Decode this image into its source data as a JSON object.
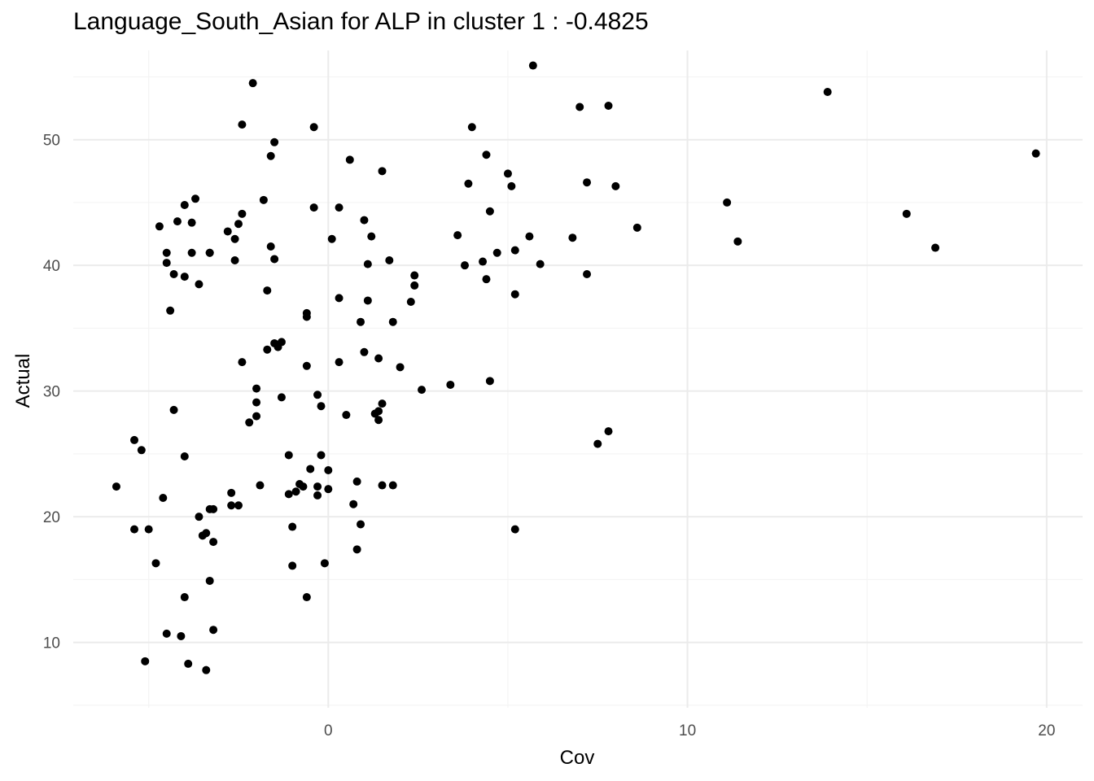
{
  "chart_data": {
    "type": "scatter",
    "title": "Language_South_Asian for ALP in cluster 1 : -0.4825",
    "xlabel": "Cov",
    "ylabel": "Actual",
    "xlim": [
      -7.1,
      21.0
    ],
    "ylim": [
      4.8,
      57.1
    ],
    "x_major_ticks": [
      0,
      10,
      20
    ],
    "x_minor_ticks": [
      -5,
      5,
      15
    ],
    "y_major_ticks": [
      10,
      20,
      30,
      40,
      50
    ],
    "y_minor_ticks": [
      5,
      15,
      25,
      35,
      45,
      55
    ],
    "grid": true,
    "point_color": "#000000",
    "points": [
      [
        -5.9,
        22.4
      ],
      [
        -5.4,
        26.1
      ],
      [
        -5.4,
        19.0
      ],
      [
        -5.2,
        25.3
      ],
      [
        -5.0,
        19.0
      ],
      [
        -5.1,
        8.5
      ],
      [
        -4.8,
        16.3
      ],
      [
        -4.7,
        43.1
      ],
      [
        -4.6,
        21.5
      ],
      [
        -4.5,
        10.7
      ],
      [
        -4.5,
        41.0
      ],
      [
        -4.5,
        40.2
      ],
      [
        -4.4,
        36.4
      ],
      [
        -4.3,
        28.5
      ],
      [
        -4.3,
        39.3
      ],
      [
        -4.2,
        43.5
      ],
      [
        -4.1,
        10.5
      ],
      [
        -4.0,
        44.8
      ],
      [
        -4.0,
        39.1
      ],
      [
        -4.0,
        24.8
      ],
      [
        -4.0,
        13.6
      ],
      [
        -3.8,
        43.4
      ],
      [
        -3.8,
        41.0
      ],
      [
        -3.7,
        45.3
      ],
      [
        -3.6,
        20.0
      ],
      [
        -3.6,
        38.5
      ],
      [
        -3.5,
        18.5
      ],
      [
        -3.4,
        18.7
      ],
      [
        -3.4,
        7.8
      ],
      [
        -3.3,
        14.9
      ],
      [
        -3.3,
        41.0
      ],
      [
        -3.9,
        8.3
      ],
      [
        -3.2,
        11.0
      ],
      [
        -3.2,
        20.6
      ],
      [
        -3.2,
        18.0
      ],
      [
        -3.3,
        41.0
      ],
      [
        -3.3,
        20.6
      ],
      [
        -2.8,
        42.7
      ],
      [
        -2.7,
        21.9
      ],
      [
        -2.6,
        40.4
      ],
      [
        -2.6,
        42.1
      ],
      [
        -2.5,
        43.3
      ],
      [
        -2.7,
        20.9
      ],
      [
        -2.5,
        20.9
      ],
      [
        -2.4,
        51.2
      ],
      [
        -2.4,
        44.1
      ],
      [
        -2.4,
        32.3
      ],
      [
        -2.2,
        27.5
      ],
      [
        -2.1,
        54.5
      ],
      [
        -2.0,
        28.0
      ],
      [
        -2.0,
        29.1
      ],
      [
        -2.0,
        30.2
      ],
      [
        -1.9,
        22.5
      ],
      [
        -1.8,
        45.2
      ],
      [
        -1.7,
        38.0
      ],
      [
        -1.7,
        33.3
      ],
      [
        -1.6,
        48.7
      ],
      [
        -1.6,
        41.5
      ],
      [
        -1.5,
        49.8
      ],
      [
        -1.5,
        40.5
      ],
      [
        -1.5,
        33.8
      ],
      [
        -1.4,
        33.5
      ],
      [
        -1.3,
        33.9
      ],
      [
        -1.3,
        29.5
      ],
      [
        -1.1,
        24.9
      ],
      [
        -1.1,
        21.8
      ],
      [
        -1.0,
        19.2
      ],
      [
        -1.0,
        16.1
      ],
      [
        -0.9,
        22.0
      ],
      [
        -0.8,
        22.6
      ],
      [
        -0.7,
        22.4
      ],
      [
        -0.6,
        13.6
      ],
      [
        -0.6,
        32.0
      ],
      [
        -0.6,
        36.2
      ],
      [
        -0.6,
        35.9
      ],
      [
        -0.5,
        23.8
      ],
      [
        -0.4,
        51.0
      ],
      [
        -0.4,
        44.6
      ],
      [
        -0.3,
        29.7
      ],
      [
        -0.3,
        22.4
      ],
      [
        -0.3,
        21.7
      ],
      [
        -0.2,
        28.8
      ],
      [
        -0.2,
        24.9
      ],
      [
        -0.1,
        16.3
      ],
      [
        0.0,
        23.7
      ],
      [
        0.0,
        22.2
      ],
      [
        0.1,
        42.1
      ],
      [
        0.3,
        37.4
      ],
      [
        0.3,
        32.3
      ],
      [
        0.3,
        44.6
      ],
      [
        0.5,
        28.1
      ],
      [
        0.6,
        48.4
      ],
      [
        0.7,
        21.0
      ],
      [
        0.8,
        22.8
      ],
      [
        0.8,
        17.4
      ],
      [
        0.9,
        35.5
      ],
      [
        0.9,
        19.4
      ],
      [
        1.0,
        43.6
      ],
      [
        1.0,
        33.1
      ],
      [
        1.1,
        40.1
      ],
      [
        1.1,
        37.2
      ],
      [
        1.2,
        42.3
      ],
      [
        1.3,
        28.2
      ],
      [
        1.4,
        28.4
      ],
      [
        1.4,
        27.7
      ],
      [
        1.4,
        32.6
      ],
      [
        1.5,
        29.0
      ],
      [
        1.5,
        47.5
      ],
      [
        1.5,
        22.5
      ],
      [
        1.7,
        40.4
      ],
      [
        1.8,
        35.5
      ],
      [
        1.8,
        22.5
      ],
      [
        2.0,
        31.9
      ],
      [
        2.3,
        37.1
      ],
      [
        2.4,
        38.4
      ],
      [
        2.4,
        39.2
      ],
      [
        2.6,
        30.1
      ],
      [
        3.4,
        30.5
      ],
      [
        3.6,
        42.4
      ],
      [
        3.8,
        40.0
      ],
      [
        3.9,
        46.5
      ],
      [
        4.0,
        51.0
      ],
      [
        4.3,
        40.3
      ],
      [
        4.4,
        48.8
      ],
      [
        4.4,
        38.9
      ],
      [
        4.5,
        44.3
      ],
      [
        4.5,
        30.8
      ],
      [
        4.7,
        41.0
      ],
      [
        5.0,
        47.3
      ],
      [
        5.1,
        46.3
      ],
      [
        5.2,
        41.2
      ],
      [
        5.2,
        37.7
      ],
      [
        5.2,
        19.0
      ],
      [
        5.6,
        42.3
      ],
      [
        5.7,
        55.9
      ],
      [
        5.9,
        40.1
      ],
      [
        6.8,
        42.2
      ],
      [
        7.0,
        52.6
      ],
      [
        7.2,
        39.3
      ],
      [
        7.2,
        46.6
      ],
      [
        7.5,
        25.8
      ],
      [
        7.8,
        52.7
      ],
      [
        7.8,
        26.8
      ],
      [
        8.0,
        46.3
      ],
      [
        8.6,
        43.0
      ],
      [
        11.1,
        45.0
      ],
      [
        11.4,
        41.9
      ],
      [
        13.9,
        53.8
      ],
      [
        16.1,
        44.1
      ],
      [
        16.9,
        41.4
      ],
      [
        19.7,
        48.9
      ]
    ]
  }
}
